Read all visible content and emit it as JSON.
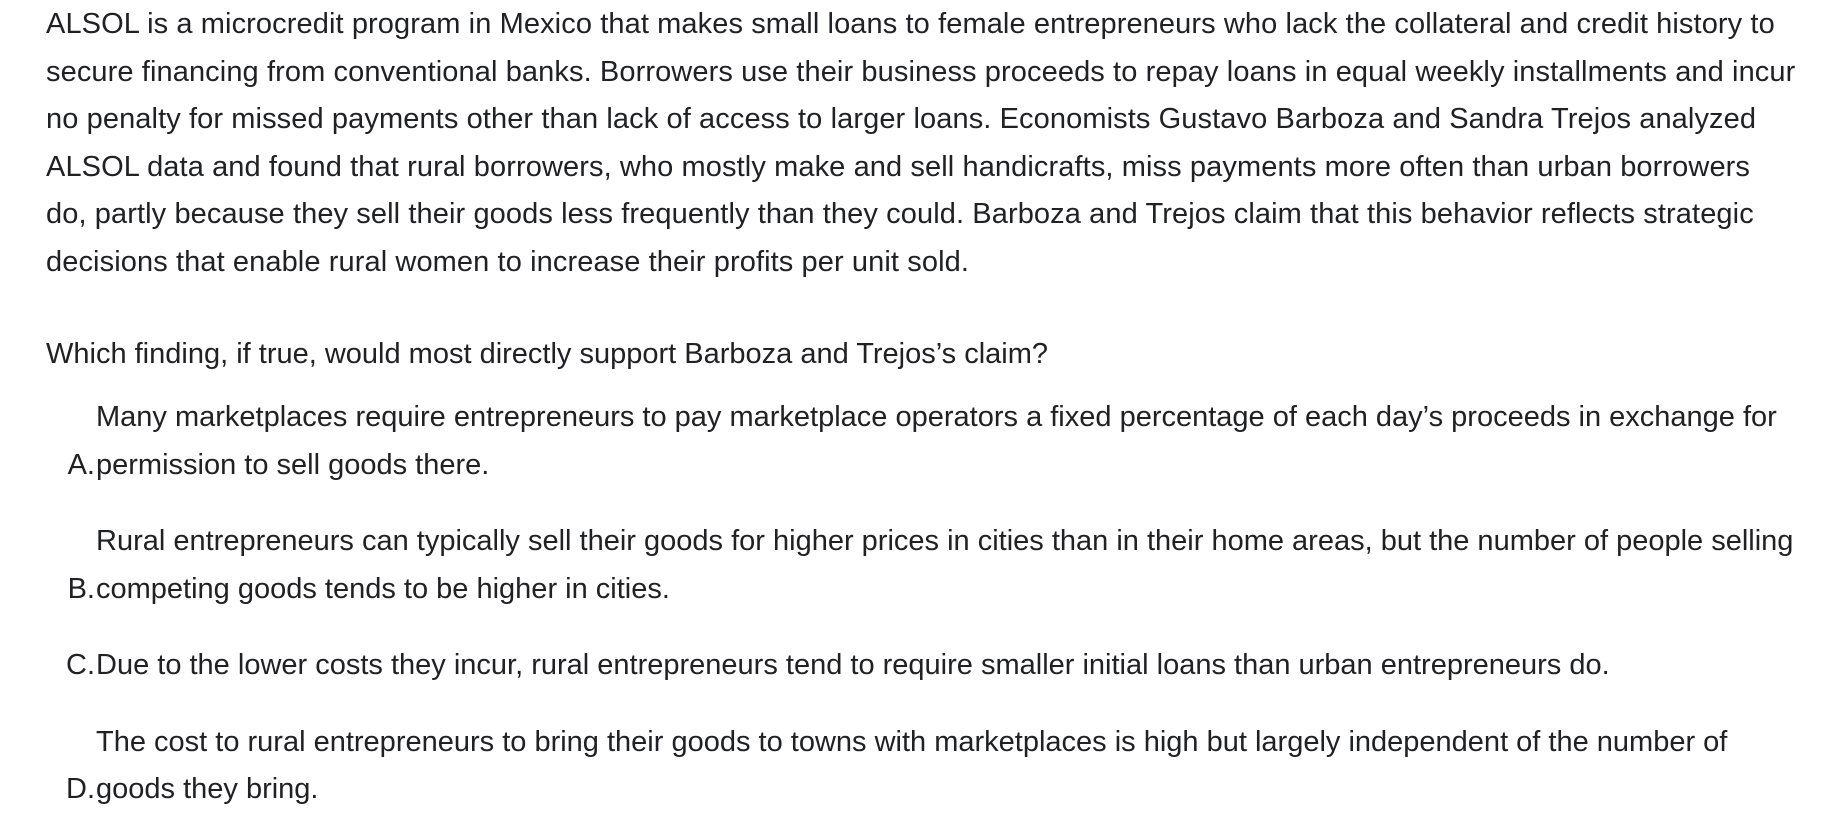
{
  "passage": "ALSOL is a microcredit program in Mexico that makes small loans to female entrepreneurs who lack the collateral and credit history to secure financing from conventional banks. Borrowers use their business proceeds to repay loans in equal weekly installments and incur no penalty for missed payments other than lack of access to larger loans. Economists Gustavo Barboza and Sandra Trejos analyzed ALSOL data and found that rural borrowers, who mostly make and sell handicrafts, miss payments more often than urban borrowers do, partly because they sell their goods less frequently than they could. Barboza and Trejos claim that this behavior reflects strategic decisions that enable rural women to increase their profits per unit sold.",
  "question": "Which finding, if true, would most directly support Barboza and Trejos’s claim?",
  "choices": [
    {
      "letter": "A.",
      "text": "Many marketplaces require entrepreneurs to pay marketplace operators a fixed percentage of each day’s proceeds in exchange for permission to sell goods there."
    },
    {
      "letter": "B.",
      "text": "Rural entrepreneurs can typically sell their goods for higher prices in cities than in their home areas, but the number of people selling competing goods tends to be higher in cities."
    },
    {
      "letter": "C.",
      "text": "Due to the lower costs they incur, rural entrepreneurs tend to require smaller initial loans than urban entrepreneurs do."
    },
    {
      "letter": "D.",
      "text": "The cost to rural entrepreneurs to bring their goods to towns with marketplaces is high but largely independent of the number of goods they bring."
    }
  ]
}
